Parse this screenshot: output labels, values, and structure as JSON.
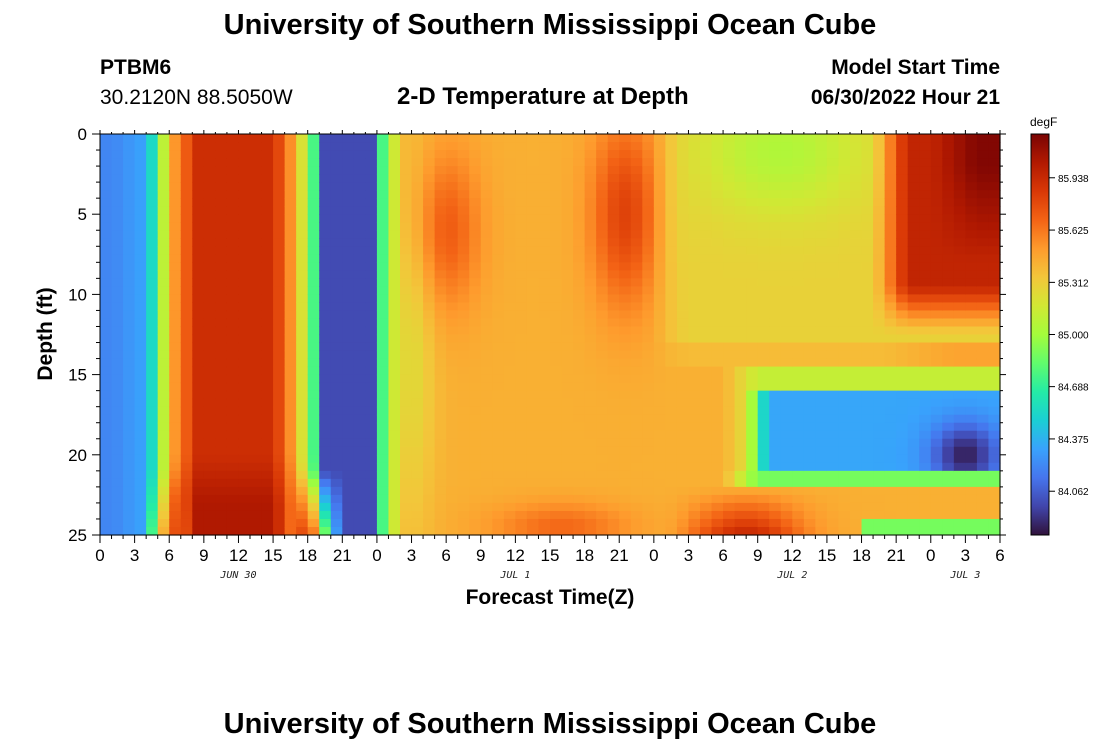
{
  "header": {
    "title": "University of Southern Mississippi Ocean Cube",
    "station": "PTBM6",
    "coords": "30.2120N  88.5050W",
    "subtitle": "2-D Temperature at Depth",
    "model_label": "Model Start Time",
    "model_time": "06/30/2022 Hour 21"
  },
  "footer": {
    "title": "University of Southern Mississippi Ocean Cube"
  },
  "chart_data": {
    "type": "heatmap",
    "title": "2-D Temperature at Depth",
    "xlabel": "Forecast Time(Z)",
    "ylabel": "Depth (ft)",
    "x_tick_labels": [
      "0",
      "3",
      "6",
      "9",
      "12",
      "15",
      "18",
      "21",
      "0",
      "3",
      "6",
      "9",
      "12",
      "15",
      "18",
      "21",
      "0",
      "3",
      "6",
      "9",
      "12",
      "15",
      "18",
      "21",
      "0",
      "3",
      "6"
    ],
    "y_ticks": [
      0,
      5,
      10,
      15,
      20,
      25
    ],
    "ylim": [
      25,
      0
    ],
    "date_labels": [
      {
        "label": "JUN 30",
        "hour": 12
      },
      {
        "label": "JUL 1",
        "hour": 36
      },
      {
        "label": "JUL 2",
        "hour": 60
      },
      {
        "label": "JUL 3",
        "hour": 75
      }
    ],
    "colorbar": {
      "unit": "degF",
      "min": 83.8,
      "max": 86.2,
      "ticks": [
        "85.938",
        "85.625",
        "85.312",
        "85.000",
        "84.688",
        "84.375",
        "84.062"
      ]
    },
    "colors": {
      "scale": [
        "#30123b",
        "#4145ab",
        "#4675ed",
        "#39a2fc",
        "#1bcfd4",
        "#24eca6",
        "#61fc6c",
        "#a4fc3b",
        "#d1e834",
        "#f3c63a",
        "#fe9b2d",
        "#f36315",
        "#d93806",
        "#b11901",
        "#7a0403"
      ]
    },
    "description": "Modeled water temperature (degF) vs forecast hour (0 to 78) and depth (0 to 25 ft)"
  }
}
